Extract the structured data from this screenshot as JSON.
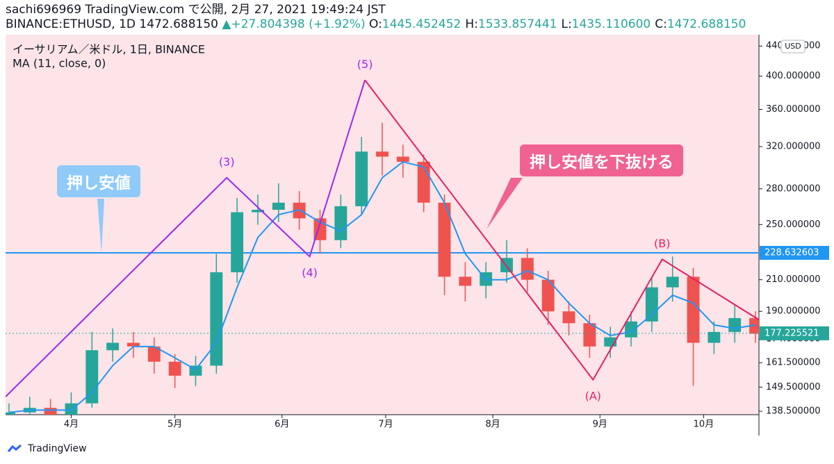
{
  "header": {
    "line1": "sachi696969 TradingView.com で公開, 2月 27, 2021 19:49:24 JST",
    "symbol": "BINANCE:ETHUSD, 1D 1472.688150",
    "arrow": "▲",
    "change": "+27.804398 (+1.92%)",
    "ohlc": [
      {
        "key": "O:",
        "value": "1445.452452"
      },
      {
        "key": "H:",
        "value": "1533.857441"
      },
      {
        "key": "L:",
        "value": "1435.110600"
      },
      {
        "key": "C:",
        "value": "1472.688150"
      }
    ]
  },
  "footer": "TradingView",
  "chart_data": {
    "type": "candlestick",
    "legend": [
      "イーサリアム／米ドル, 1日, BINANCE",
      "MA (11, close, 0)"
    ],
    "currency": "USD",
    "x": [
      -18,
      -12,
      -6,
      0,
      6,
      12,
      18,
      24,
      30,
      36,
      42,
      48,
      54,
      60,
      66,
      72,
      78,
      84,
      90,
      96,
      102,
      108,
      114,
      120,
      126,
      132,
      138,
      144,
      150,
      156,
      162,
      168,
      174,
      180,
      186,
      192,
      198
    ],
    "open": [
      136,
      138,
      140,
      137,
      142,
      168,
      172,
      170,
      162,
      155,
      160,
      215,
      260,
      262,
      268,
      255,
      238,
      265,
      315,
      310,
      305,
      268,
      212,
      206,
      215,
      225,
      210,
      190,
      183,
      170,
      175,
      184,
      205,
      212,
      172,
      178,
      186
    ],
    "high": [
      142,
      145,
      144,
      147,
      178,
      180,
      178,
      175,
      166,
      165,
      228,
      272,
      275,
      285,
      278,
      262,
      275,
      330,
      345,
      322,
      312,
      275,
      222,
      222,
      238,
      232,
      216,
      196,
      188,
      181,
      190,
      212,
      226,
      218,
      184,
      194,
      190
    ],
    "low": [
      133,
      135,
      134,
      135,
      140,
      162,
      164,
      156,
      149,
      150,
      156,
      208,
      250,
      252,
      246,
      228,
      232,
      258,
      292,
      290,
      260,
      200,
      196,
      198,
      208,
      202,
      182,
      176,
      164,
      164,
      170,
      178,
      196,
      150,
      166,
      172,
      172
    ],
    "close": [
      138,
      140,
      137,
      142,
      168,
      172,
      170,
      162,
      155,
      160,
      215,
      260,
      262,
      268,
      255,
      238,
      265,
      315,
      310,
      305,
      268,
      212,
      206,
      215,
      225,
      210,
      190,
      183,
      170,
      175,
      184,
      205,
      212,
      172,
      178,
      186,
      177
    ],
    "ma": {
      "color": "#2196f3",
      "values": [
        138,
        139,
        139,
        139,
        147,
        160,
        170,
        170,
        164,
        158,
        172,
        205,
        240,
        258,
        262,
        252,
        245,
        258,
        290,
        305,
        300,
        268,
        228,
        210,
        210,
        216,
        210,
        195,
        183,
        176,
        178,
        188,
        200,
        195,
        182,
        180,
        182
      ]
    },
    "up_color": "#26a69a",
    "down_color": "#ef5350",
    "xlim": [
      -19,
      199
    ],
    "xticks": [
      {
        "value": 0,
        "label": "4月"
      },
      {
        "value": 30,
        "label": "5月"
      },
      {
        "value": 61,
        "label": "6月"
      },
      {
        "value": 91,
        "label": "7月"
      },
      {
        "value": 122,
        "label": "8月"
      },
      {
        "value": 153,
        "label": "9月"
      },
      {
        "value": 183,
        "label": "10月"
      }
    ],
    "ylim": [
      137,
      449
    ],
    "log_scale": true,
    "yticks": [
      {
        "value": 138.5,
        "label": "138.500000"
      },
      {
        "value": 149.5,
        "label": "149.500000"
      },
      {
        "value": 161.5,
        "label": "161.500000"
      },
      {
        "value": 174,
        "label": "174.000000"
      },
      {
        "value": 190,
        "label": "190.000000"
      },
      {
        "value": 210,
        "label": "210.000000"
      },
      {
        "value": 250,
        "label": "250.000000"
      },
      {
        "value": 280,
        "label": "280.000000"
      },
      {
        "value": 320,
        "label": "320.000000"
      },
      {
        "value": 360,
        "label": "360.000000"
      },
      {
        "value": 400,
        "label": "400.000000"
      },
      {
        "value": 440,
        "label": "440.000000"
      }
    ],
    "hline": {
      "value": 228.632603,
      "label": "228.632603",
      "color": "#2196f3"
    },
    "last_price": {
      "value": 177.225521,
      "label": "177.225521"
    },
    "wave_lines": [
      {
        "color": "#9c27f0",
        "x": [
          -19,
          45,
          69,
          85
        ],
        "y": [
          145,
          290,
          226,
          395
        ],
        "labels": [
          null,
          "(3)",
          "(4)",
          "(5)"
        ]
      },
      {
        "color": "#e91e63",
        "x": [
          85,
          151,
          171,
          199
        ],
        "y": [
          395,
          153,
          224,
          185
        ],
        "labels": [
          null,
          "(A)",
          "(B)",
          null
        ]
      }
    ],
    "callouts": [
      {
        "text": "押し安値",
        "color": "#90caf9"
      },
      {
        "text": "押し安値を下抜ける",
        "color": "#f06292"
      }
    ]
  }
}
